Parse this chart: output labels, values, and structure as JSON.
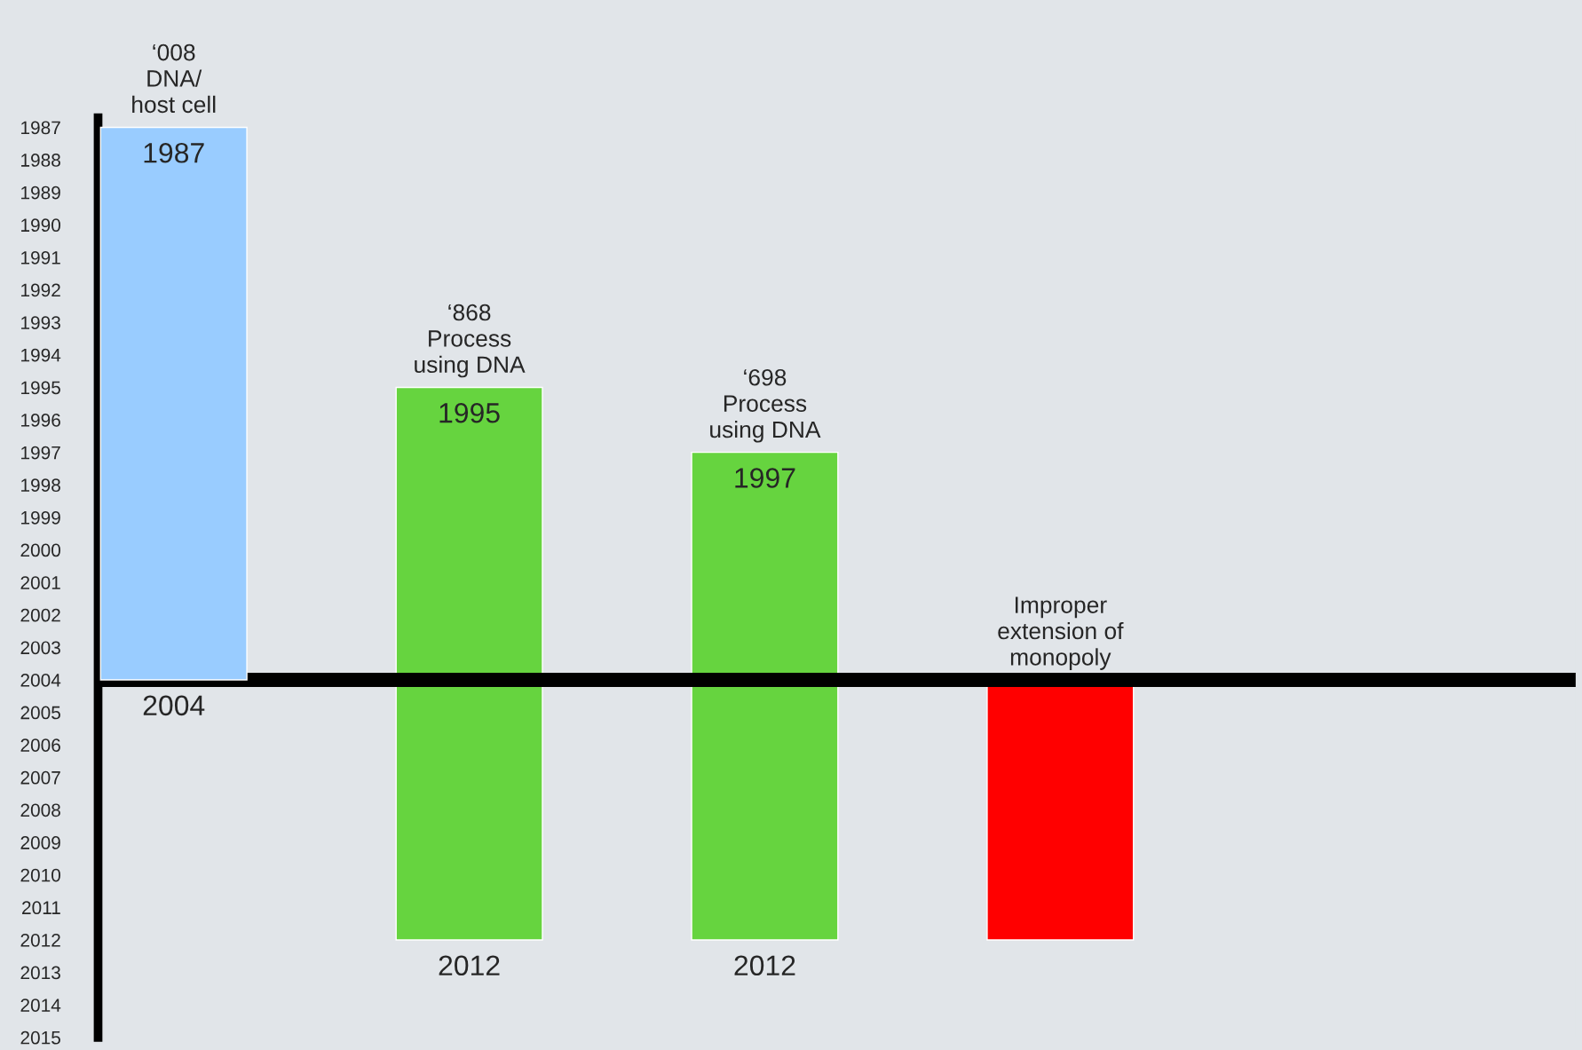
{
  "chart_data": {
    "type": "bar",
    "categories": [
      "‘008\nDNA/\nhost cell",
      "‘868\nProcess\nusing DNA",
      "‘698\nProcess\nusing DNA",
      "Improper\nextension of\nmonopoly"
    ],
    "base": [
      1987,
      1995,
      1997,
      2004
    ],
    "values": [
      17,
      17,
      15,
      8
    ],
    "colors": [
      "#99ccff",
      "#66d43f",
      "#66d43f",
      "#ff0000"
    ],
    "ylim": [
      2015,
      1986.7
    ],
    "yticks": [
      1987,
      1988,
      1989,
      1990,
      1991,
      1992,
      1993,
      1994,
      1995,
      1996,
      1997,
      1998,
      1999,
      2000,
      2001,
      2002,
      2003,
      2004,
      2005,
      2006,
      2007,
      2008,
      2009,
      2010,
      2011,
      2012,
      2013,
      2014,
      2015
    ],
    "ref_lines": [
      {
        "axis": "y",
        "value": 2004,
        "color": "#000000"
      }
    ],
    "annotations": [
      {
        "text": "1987",
        "x": "‘008\nDNA/\nhost cell",
        "y": 1987
      },
      {
        "text": "2004",
        "x": "‘008\nDNA/\nhost cell",
        "y": 2004
      },
      {
        "text": "1995",
        "x": "‘868\nProcess\nusing DNA",
        "y": 1995
      },
      {
        "text": "2012",
        "x": "‘868\nProcess\nusing DNA",
        "y": 2012
      },
      {
        "text": "1997",
        "x": "‘698\nProcess\nusing DNA",
        "y": 1997
      },
      {
        "text": "2012",
        "x": "‘698\nProcess\nusing DNA",
        "y": 2012
      }
    ],
    "grid": false,
    "legend": false
  }
}
